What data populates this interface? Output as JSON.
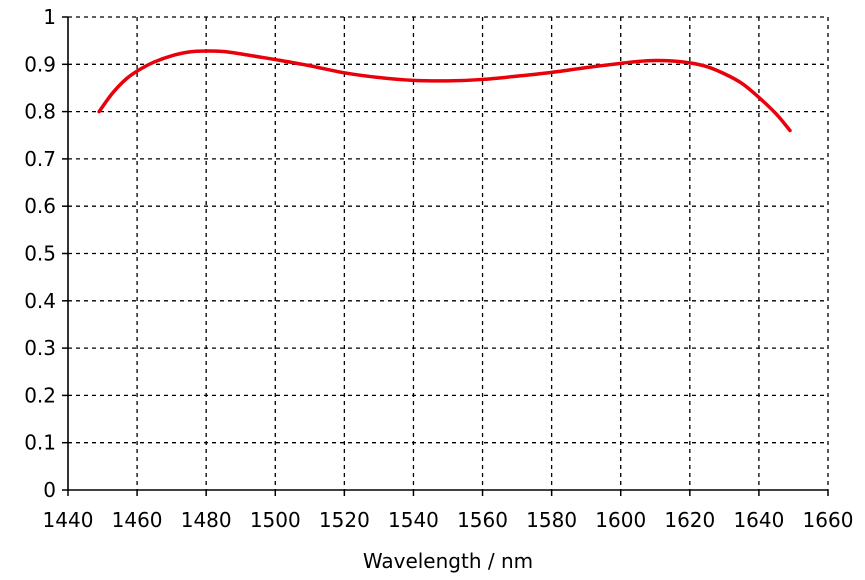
{
  "chart_data": {
    "type": "line",
    "title": "",
    "xlabel": "Wavelength / nm",
    "ylabel": "",
    "xlim": [
      1440,
      1660
    ],
    "ylim": [
      0,
      1
    ],
    "xticks": [
      1440,
      1460,
      1480,
      1500,
      1520,
      1540,
      1560,
      1580,
      1600,
      1620,
      1640,
      1660
    ],
    "xtick_labels": [
      "1440",
      "1460",
      "1480",
      "1500",
      "1520",
      "1540",
      "1560",
      "1580",
      "1600",
      "1620",
      "1640",
      "1660"
    ],
    "yticks": [
      0,
      0.1,
      0.2,
      0.3,
      0.4,
      0.5,
      0.6,
      0.7,
      0.8,
      0.9,
      1
    ],
    "ytick_labels": [
      "0",
      "0.1",
      "0.2",
      "0.3",
      "0.4",
      "0.5",
      "0.6",
      "0.7",
      "0.8",
      "0.9",
      "1"
    ],
    "grid": true,
    "grid_style": "dashed",
    "series": [
      {
        "color": "#e8000b",
        "x": [
          1449,
          1453,
          1457,
          1461,
          1465,
          1470,
          1475,
          1480,
          1485,
          1490,
          1495,
          1500,
          1510,
          1520,
          1530,
          1540,
          1550,
          1560,
          1570,
          1580,
          1590,
          1600,
          1605,
          1610,
          1615,
          1620,
          1625,
          1630,
          1635,
          1640,
          1645,
          1649
        ],
        "y": [
          0.8,
          0.84,
          0.87,
          0.89,
          0.905,
          0.918,
          0.926,
          0.928,
          0.927,
          0.922,
          0.916,
          0.91,
          0.897,
          0.882,
          0.872,
          0.866,
          0.865,
          0.868,
          0.875,
          0.883,
          0.893,
          0.902,
          0.906,
          0.908,
          0.907,
          0.903,
          0.895,
          0.88,
          0.86,
          0.83,
          0.795,
          0.76
        ]
      }
    ]
  }
}
